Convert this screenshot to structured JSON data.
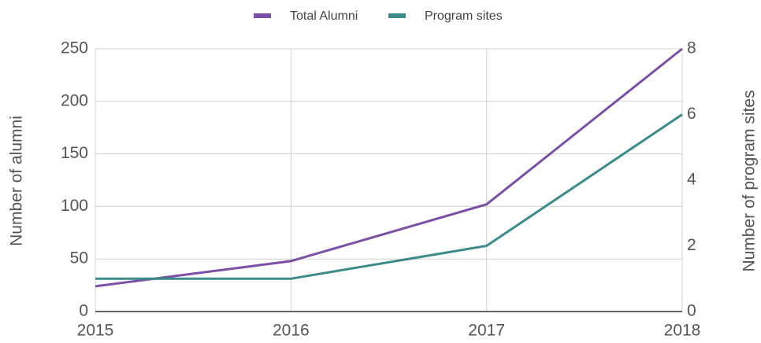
{
  "chart_data": {
    "type": "line",
    "categories": [
      "2015",
      "2016",
      "2017",
      "2018"
    ],
    "series": [
      {
        "name": "Total Alumni",
        "color": "#7b4fa6",
        "values": [
          24,
          48,
          102,
          250
        ]
      },
      {
        "name": "Program sites",
        "color": "#3d8a8a",
        "values": [
          1,
          1,
          2,
          6
        ],
        "axis": "y2"
      }
    ],
    "y_label": "Number of alumni",
    "y2_label": "Number of program sites",
    "ylim": [
      0,
      250
    ],
    "yticks": [
      0,
      50,
      100,
      150,
      200,
      250
    ],
    "y2lim": [
      0,
      8
    ],
    "y2ticks": [
      0,
      2,
      4,
      6,
      8
    ],
    "grid": true
  }
}
